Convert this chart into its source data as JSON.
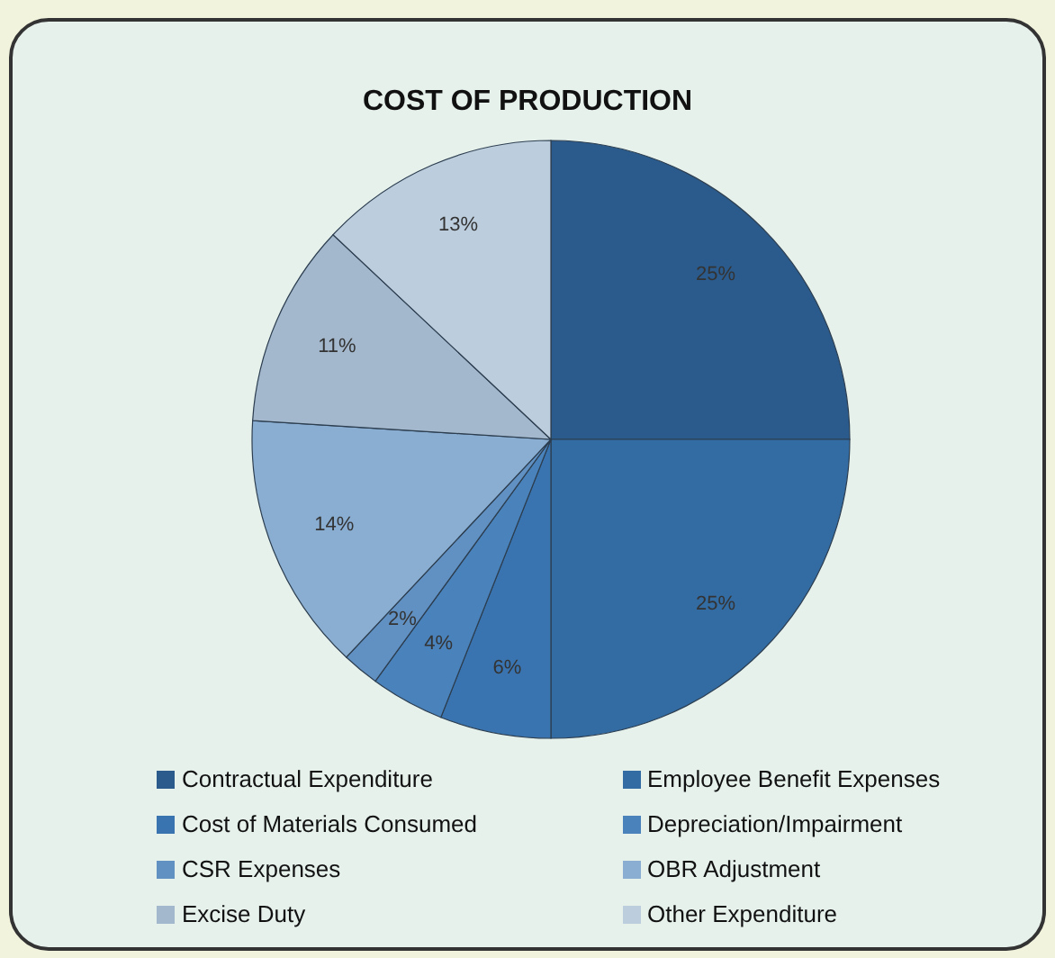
{
  "chart_data": {
    "type": "pie",
    "title": "COST OF PRODUCTION",
    "categories": [
      "Contractual Expenditure",
      "Employee Benefit Expenses",
      "Cost of Materials Consumed",
      "Depreciation/Impairment",
      "CSR Expenses",
      "OBR Adjustment",
      "Excise Duty",
      "Other Expenditure"
    ],
    "values": [
      25,
      25,
      6,
      4,
      2,
      14,
      11,
      13
    ],
    "value_labels": [
      "25%",
      "25%",
      "6%",
      "4%",
      "2%",
      "14%",
      "11%",
      "13%"
    ],
    "colors": [
      "#2b5b8c",
      "#336ba3",
      "#3a74b0",
      "#4a82bb",
      "#6190c2",
      "#8aaed2",
      "#a3b8cc",
      "#bccddd"
    ],
    "legend": "bottom"
  }
}
